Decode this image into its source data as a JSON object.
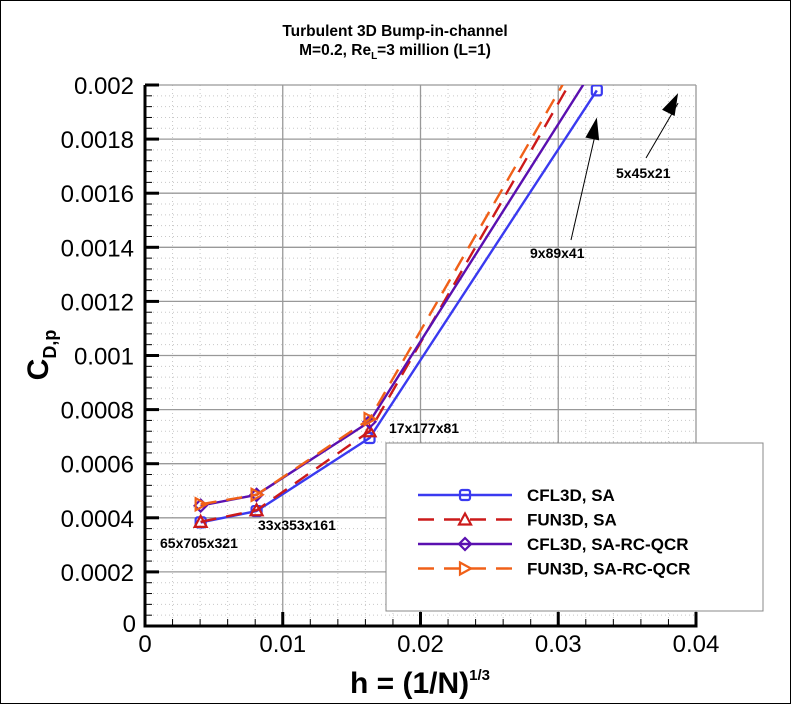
{
  "chart_data": {
    "type": "line",
    "title": "Turbulent 3D Bump-in-channel",
    "subtitle": {
      "prefix": "M=0.2, Re",
      "sub": "L",
      "suffix": "=3 million (L=1)"
    },
    "xlabel": {
      "main": "h = (1/N)",
      "sup": "1/3"
    },
    "ylabel": {
      "main": "C",
      "sub": "D,p"
    },
    "xlim": [
      0,
      0.04
    ],
    "ylim": [
      0,
      0.002
    ],
    "x_ticks": [
      "0",
      "0.01",
      "0.02",
      "0.03",
      "0.04"
    ],
    "y_ticks": [
      "0",
      "0.0002",
      "0.0004",
      "0.0006",
      "0.0008",
      "0.001",
      "0.0012",
      "0.0014",
      "0.0016",
      "0.0018",
      "0.002"
    ],
    "grid": true,
    "legend_position": "lower right",
    "series": [
      {
        "name": "CFL3D, SA",
        "color": "#3a3af0",
        "dash": "solid",
        "marker": "square",
        "x": [
          0.00404,
          0.0081,
          0.0163,
          0.0328
        ],
        "y": [
          0.000383,
          0.000425,
          0.000695,
          0.00198
        ]
      },
      {
        "name": "FUN3D, SA",
        "color": "#cc1a1a",
        "dash": "dashed",
        "marker": "triangle",
        "x": [
          0.00404,
          0.0081,
          0.0163,
          0.0328
        ],
        "y": [
          0.000385,
          0.000428,
          0.00072,
          0.00218
        ]
      },
      {
        "name": "CFL3D, SA-RC-QCR",
        "color": "#5a10b0",
        "dash": "solid",
        "marker": "diamond",
        "x": [
          0.00404,
          0.0081,
          0.0163,
          0.0328
        ],
        "y": [
          0.000445,
          0.000485,
          0.000755,
          0.00208
        ]
      },
      {
        "name": "FUN3D, SA-RC-QCR",
        "color": "#f06018",
        "dash": "dashed",
        "marker": "right-triangle",
        "x": [
          0.00404,
          0.0081,
          0.0163,
          0.0328
        ],
        "y": [
          0.00045,
          0.000485,
          0.000765,
          0.00222
        ]
      }
    ],
    "annotations": [
      {
        "text": "65x705x321",
        "x": 0.00404,
        "y": 0.000383
      },
      {
        "text": "33x353x161",
        "x": 0.0081,
        "y": 0.000425
      },
      {
        "text": "17x177x81",
        "x": 0.0163,
        "y": 0.000695
      },
      {
        "text": "9x89x41",
        "arrow_to": [
          0.0328,
          0.00188
        ]
      },
      {
        "text": "5x45x21",
        "arrow_to": [
          0.0387,
          0.00197
        ]
      }
    ]
  }
}
